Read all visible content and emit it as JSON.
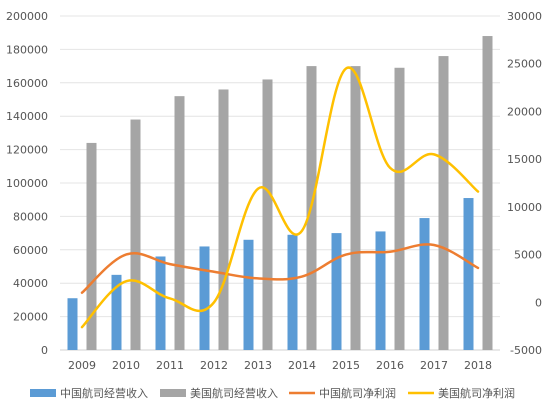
{
  "chart_data": {
    "type": "bar",
    "categories": [
      "2009",
      "2010",
      "2011",
      "2012",
      "2013",
      "2014",
      "2015",
      "2016",
      "2017",
      "2018"
    ],
    "bar_series": [
      {
        "name": "中国航司经营收入",
        "color": "#5b9bd5",
        "values": [
          31000,
          45000,
          56000,
          62000,
          66000,
          69000,
          70000,
          71000,
          79000,
          91000
        ]
      },
      {
        "name": "美国航司经营收入",
        "color": "#a5a5a5",
        "values": [
          124000,
          138000,
          152000,
          156000,
          162000,
          170000,
          170000,
          169000,
          176000,
          188000
        ]
      }
    ],
    "line_series": [
      {
        "name": "中国航司净利润",
        "color": "#ed7d31",
        "values": [
          1000,
          5000,
          4000,
          3200,
          2500,
          2700,
          5000,
          5300,
          6000,
          3600
        ]
      },
      {
        "name": "美国航司净利润",
        "color": "#ffc000",
        "values": [
          -2600,
          2200,
          400,
          0,
          11900,
          7500,
          24500,
          14100,
          15500,
          11600
        ]
      }
    ],
    "y_left": {
      "min": 0,
      "max": 200000,
      "ticks": [
        "0",
        "20000",
        "40000",
        "60000",
        "80000",
        "100000",
        "120000",
        "140000",
        "160000",
        "180000",
        "200000"
      ]
    },
    "y_right": {
      "min": -5000,
      "max": 30000,
      "ticks": [
        "-5000",
        "0",
        "5000",
        "10000",
        "15000",
        "20000",
        "25000",
        "30000"
      ]
    },
    "grid": true,
    "legend_position": "bottom"
  }
}
